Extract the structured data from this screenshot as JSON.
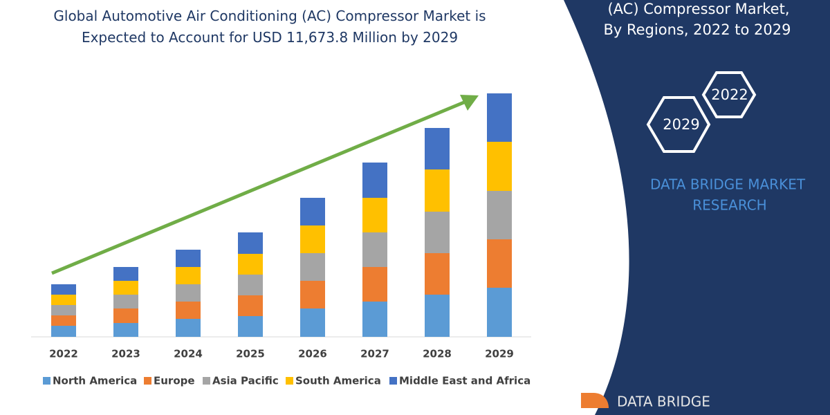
{
  "chart_data": {
    "type": "stacked-bar",
    "title": "Global Automotive Air Conditioning (AC) Compressor Market is Expected to Account for USD 11,673.8 Million by 2029",
    "categories": [
      "2022",
      "2023",
      "2024",
      "2025",
      "2026",
      "2027",
      "2028",
      "2029"
    ],
    "series": [
      {
        "name": "North America",
        "color": "#5b9bd5",
        "values": [
          16,
          20,
          26,
          30,
          41,
          51,
          61,
          71
        ]
      },
      {
        "name": "Europe",
        "color": "#ed7d31",
        "values": [
          15,
          21,
          25,
          30,
          40,
          50,
          60,
          70
        ]
      },
      {
        "name": "Asia Pacific",
        "color": "#a5a5a5",
        "values": [
          15,
          20,
          25,
          30,
          40,
          50,
          60,
          70
        ]
      },
      {
        "name": "South America",
        "color": "#ffc000",
        "values": [
          15,
          20,
          25,
          30,
          40,
          50,
          61,
          71
        ]
      },
      {
        "name": "Middle East and Africa",
        "color": "#4472c4",
        "values": [
          15,
          20,
          25,
          31,
          40,
          51,
          60,
          70
        ]
      }
    ],
    "ylim": [
      0,
      352
    ]
  },
  "panel": {
    "title_lines": [
      "(AC) Compressor Market,",
      "By Regions, 2022 to 2029"
    ],
    "hexagons": [
      "2022",
      "2029"
    ],
    "brand_lines": [
      "DATA BRIDGE MARKET",
      "RESEARCH"
    ],
    "logo": "DATA BRIDGE"
  }
}
